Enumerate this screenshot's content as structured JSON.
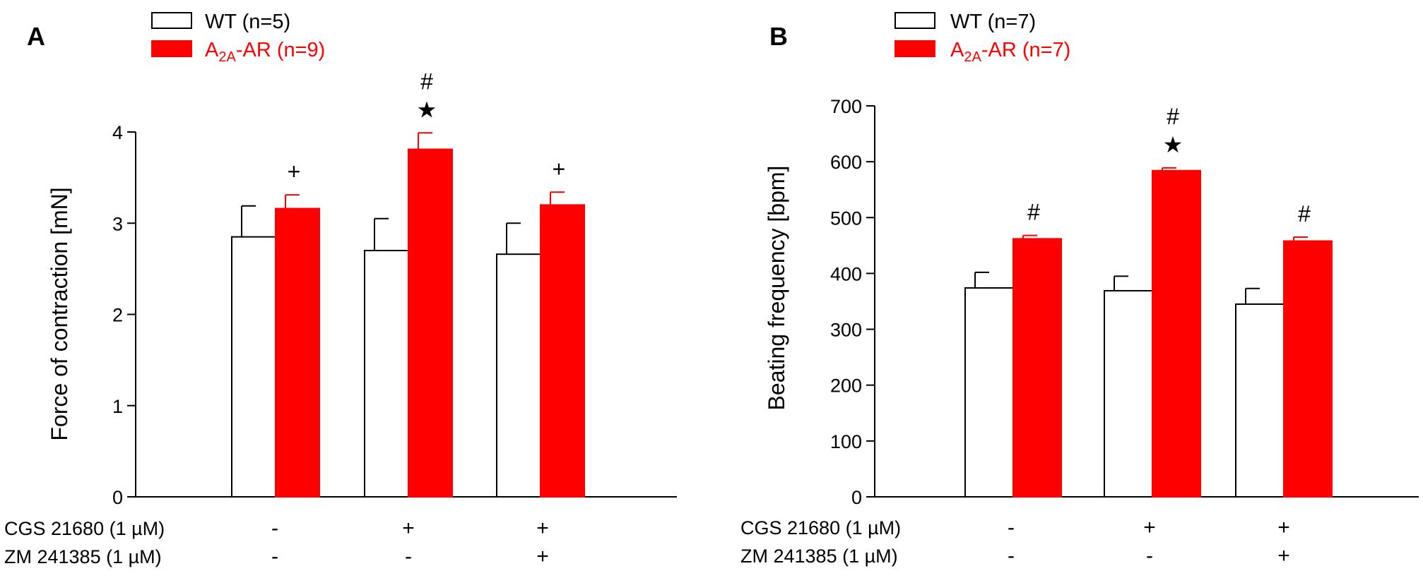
{
  "colors": {
    "wt_fill": "#ffffff",
    "a2a_fill": "#ff0000",
    "stroke": "#000000",
    "a2a_text": "#ff0000"
  },
  "chart_data": [
    {
      "type": "bar",
      "panel_label": "A",
      "ylabel": "Force of contraction [mN]",
      "ylim": [
        0,
        4
      ],
      "yticks": [
        "0",
        "1",
        "2",
        "3",
        "4"
      ],
      "legend": [
        {
          "name": "WT (n=5)",
          "prefix": "",
          "sub": "",
          "suffix": ""
        },
        {
          "name": "A2A-AR (n=9)",
          "prefix": "A",
          "sub": "2A",
          "suffix": "-AR (n=9)"
        }
      ],
      "categories": [
        {
          "cgs": "-",
          "zm": "-"
        },
        {
          "cgs": "+",
          "zm": "-"
        },
        {
          "cgs": "+",
          "zm": "+"
        }
      ],
      "condition_labels": [
        "CGS 21680 (1 µM)",
        "ZM 241385 (1 µM)"
      ],
      "series": [
        {
          "name": "WT",
          "values": [
            2.85,
            2.7,
            2.66
          ],
          "errors": [
            0.34,
            0.35,
            0.34
          ]
        },
        {
          "name": "A2A-AR",
          "values": [
            3.16,
            3.81,
            3.2
          ],
          "errors": [
            0.15,
            0.18,
            0.14
          ]
        }
      ],
      "significance": [
        [
          "+"
        ],
        [
          "#",
          "★"
        ],
        [
          "+"
        ]
      ]
    },
    {
      "type": "bar",
      "panel_label": "B",
      "ylabel": "Beating frequency [bpm]",
      "ylim": [
        0,
        700
      ],
      "yticks": [
        "0",
        "100",
        "200",
        "300",
        "400",
        "500",
        "600",
        "700"
      ],
      "legend": [
        {
          "name": "WT (n=7)",
          "prefix": "",
          "sub": "",
          "suffix": ""
        },
        {
          "name": "A2A-AR (n=7)",
          "prefix": "A",
          "sub": "2A",
          "suffix": "-AR (n=7)"
        }
      ],
      "categories": [
        {
          "cgs": "-",
          "zm": "-"
        },
        {
          "cgs": "+",
          "zm": "-"
        },
        {
          "cgs": "+",
          "zm": "+"
        }
      ],
      "condition_labels": [
        "CGS 21680 (1 µM)",
        "ZM 241385 (1 µM)"
      ],
      "series": [
        {
          "name": "WT",
          "values": [
            374,
            369,
            345
          ],
          "errors": [
            28,
            26,
            28
          ]
        },
        {
          "name": "A2A-AR",
          "values": [
            462,
            584,
            458
          ],
          "errors": [
            6,
            5,
            7
          ]
        }
      ],
      "significance": [
        [
          "#"
        ],
        [
          "#",
          "★"
        ],
        [
          "#"
        ]
      ]
    }
  ]
}
